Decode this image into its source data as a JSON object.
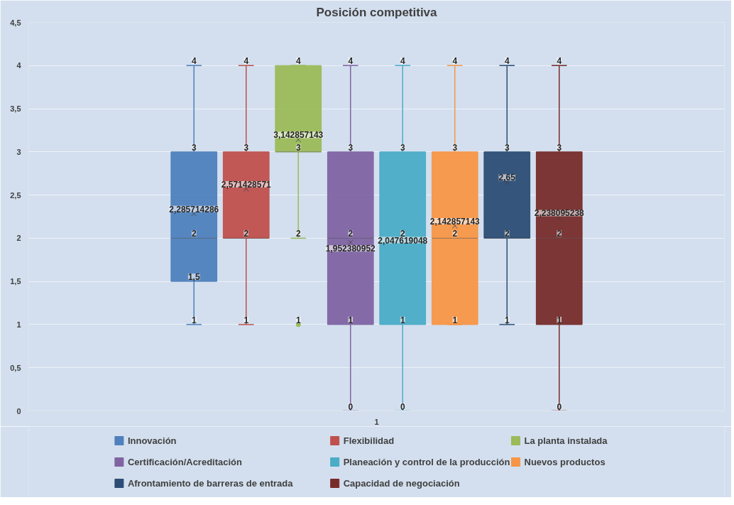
{
  "chart_data": {
    "type": "box",
    "title": "Posición competitiva",
    "categories": [
      "1"
    ],
    "ylim": [
      0,
      4.5
    ],
    "yticks": [
      {
        "value": 0,
        "label": "0"
      },
      {
        "value": 0.5,
        "label": "0,5"
      },
      {
        "value": 1,
        "label": "1"
      },
      {
        "value": 1.5,
        "label": "1,5"
      },
      {
        "value": 2,
        "label": "2"
      },
      {
        "value": 2.5,
        "label": "2,5"
      },
      {
        "value": 3,
        "label": "3"
      },
      {
        "value": 3.5,
        "label": "3,5"
      },
      {
        "value": 4,
        "label": "4"
      },
      {
        "value": 4.5,
        "label": "4,5"
      }
    ],
    "grid": "y",
    "legend": "bottom",
    "marker": "cross",
    "data_labels": true,
    "series": [
      {
        "name": "Innovación",
        "color": "#4f81bd",
        "boxes": [
          {
            "low": 1,
            "q1": 1.5,
            "median": 2,
            "q3": 3,
            "high": 4,
            "mean": 2.285714286
          }
        ]
      },
      {
        "name": "Flexibilidad",
        "color": "#c0504d",
        "boxes": [
          {
            "low": 1,
            "q1": 2,
            "median": 2,
            "q3": 3,
            "high": 4,
            "mean": 2.571428571
          }
        ]
      },
      {
        "name": "La planta instalada",
        "color": "#9bbb59",
        "boxes": [
          {
            "low": 2,
            "q1": 3,
            "median": 3,
            "q3": 4,
            "high": 4,
            "mean": 3.142857143,
            "outliers": [
              1
            ]
          }
        ]
      },
      {
        "name": "Certificación/Acreditación",
        "color": "#8064a2",
        "boxes": [
          {
            "low": 0,
            "q1": 1,
            "median": 2,
            "q3": 3,
            "high": 4,
            "mean": 1.952380952
          }
        ]
      },
      {
        "name": "Planeación y control de la producción",
        "color": "#4bacc6",
        "boxes": [
          {
            "low": 0,
            "q1": 1,
            "median": 2,
            "q3": 3,
            "high": 4,
            "mean": 2.047619048
          }
        ]
      },
      {
        "name": "Nuevos productos",
        "color": "#f79646",
        "boxes": [
          {
            "low": 1,
            "q1": 1,
            "median": 2,
            "q3": 3,
            "high": 4,
            "mean": 2.142857143
          }
        ]
      },
      {
        "name": "Afrontamiento de barreras de entrada",
        "color": "#2c4d75",
        "boxes": [
          {
            "low": 1,
            "q1": 2,
            "median": 2,
            "q3": 3,
            "high": 4,
            "mean": 2.65
          }
        ]
      },
      {
        "name": "Capacidad de negociación",
        "color": "#772c2a",
        "boxes": [
          {
            "low": 0,
            "q1": 1,
            "median": 2,
            "q3": 3,
            "high": 4,
            "mean": 2.238095238
          }
        ]
      }
    ],
    "annotations": [
      "1",
      "1,5",
      "2",
      "3",
      "4",
      "2,285714286",
      "1",
      "2",
      "3",
      "4",
      "2,571428571",
      "2",
      "3",
      "4",
      "3,142857143",
      "1",
      "0",
      "1",
      "2",
      "3",
      "4",
      "1,952380952",
      "0",
      "1",
      "2",
      "3",
      "4",
      "2,047619048",
      "1",
      "2",
      "3",
      "4",
      "2,142857143",
      "1",
      "2",
      "3",
      "4",
      "2,65",
      "0",
      "1",
      "2",
      "3",
      "4",
      "2,238095238"
    ]
  }
}
